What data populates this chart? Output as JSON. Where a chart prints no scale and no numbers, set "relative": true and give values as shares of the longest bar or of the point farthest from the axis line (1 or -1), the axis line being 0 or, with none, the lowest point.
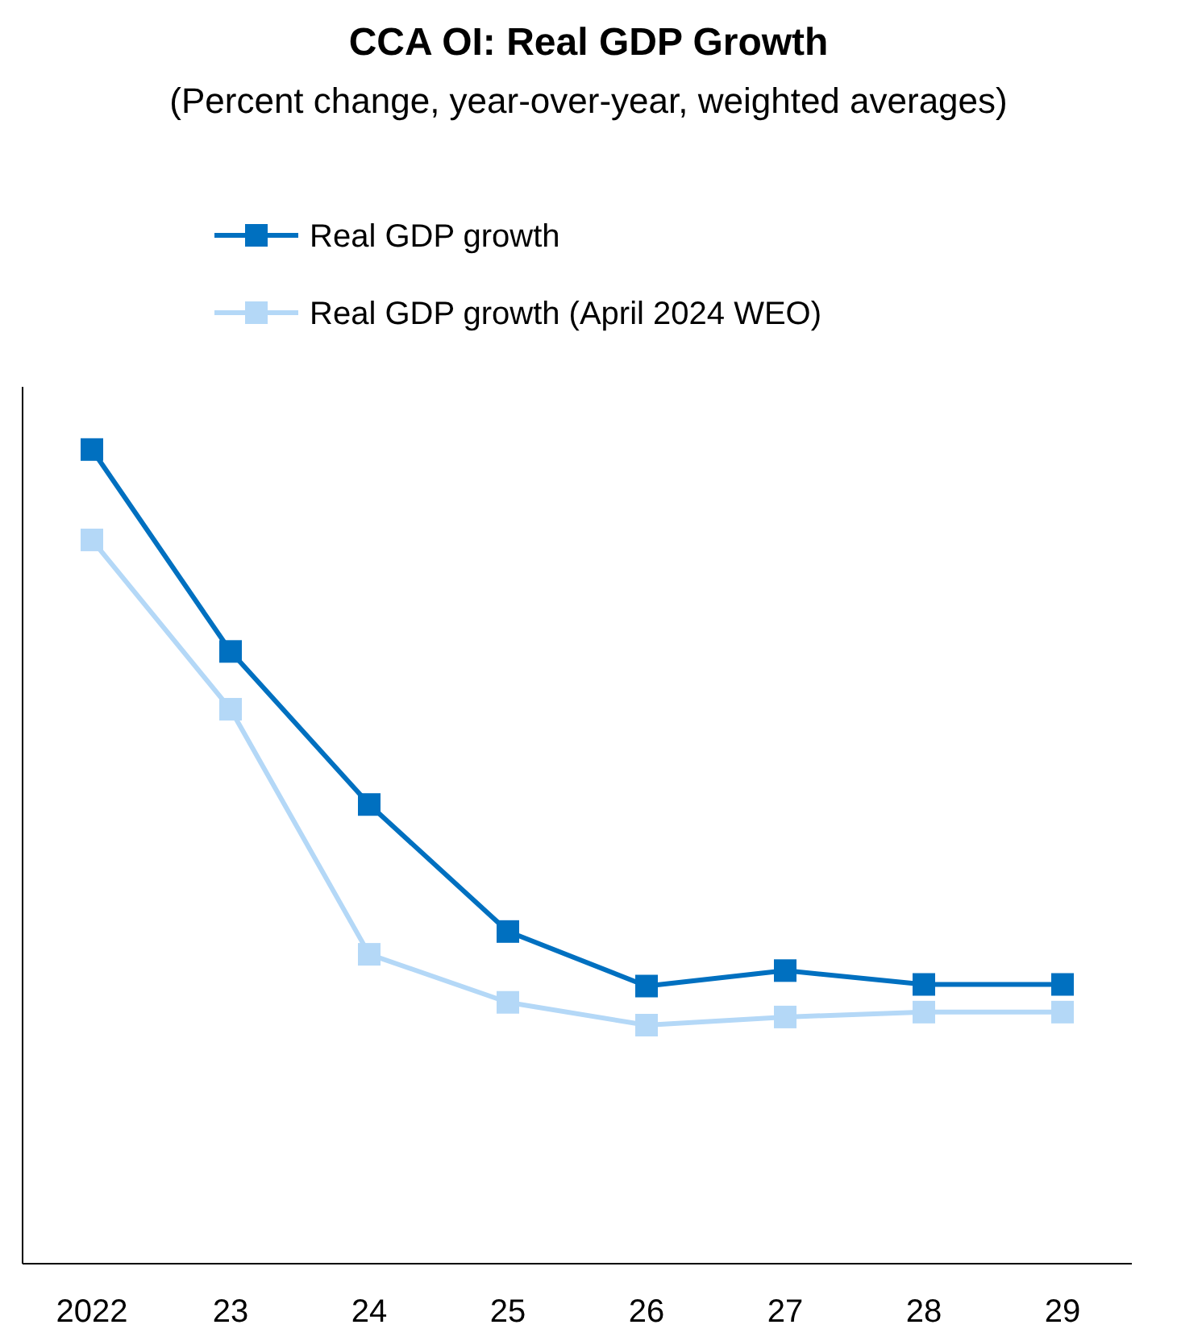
{
  "chart_data": {
    "type": "line",
    "title": "CCA OI: Real GDP Growth",
    "subtitle": "(Percent change, year-over-year, weighted averages)",
    "categories": [
      "2022",
      "23",
      "24",
      "25",
      "26",
      "27",
      "28",
      "29"
    ],
    "relative": true,
    "legend": "top",
    "marker": "square",
    "line_style": "solid",
    "series": [
      {
        "name": "Real GDP growth",
        "color": "#0070c0",
        "values": [
          1.0,
          0.752,
          0.564,
          0.408,
          0.341,
          0.36,
          0.343,
          0.343
        ]
      },
      {
        "name": "Real GDP growth (April 2024 WEO)",
        "color": "#b4d8f7",
        "values": [
          0.889,
          0.681,
          0.38,
          0.321,
          0.293,
          0.303,
          0.309,
          0.309
        ]
      }
    ]
  }
}
